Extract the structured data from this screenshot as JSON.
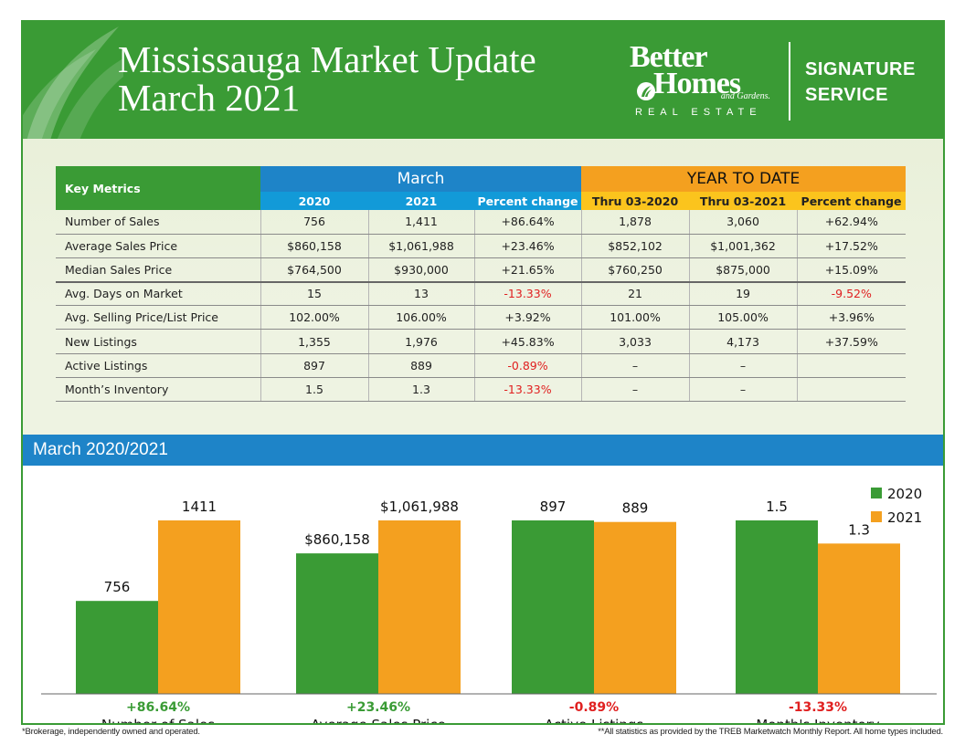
{
  "header": {
    "title_line1": "Mississauga Market Update",
    "title_line2": "March 2021",
    "brand": {
      "line1": "Better",
      "line2": "Homes",
      "line3": "and Gardens.",
      "line4": "REAL ESTATE",
      "signature1": "SIGNATURE",
      "signature2": "SERVICE"
    }
  },
  "colors": {
    "green": "#3a9b35",
    "blue": "#1e84c8",
    "orange": "#f4a01f",
    "negative": "#e02020",
    "background": "#eef3e2"
  },
  "table": {
    "key_header": "Key Metrics",
    "group_march": "March",
    "group_ytd": "YEAR TO DATE",
    "subheaders": [
      "2020",
      "2021",
      "Percent change",
      "Thru 03-2020",
      "Thru 03-2021",
      "Percent change"
    ],
    "rows": [
      {
        "label": "Number of Sales",
        "cells": [
          "756",
          "1,411",
          "+86.64%",
          "1,878",
          "3,060",
          "+62.94%"
        ]
      },
      {
        "label": "Average Sales Price",
        "cells": [
          "$860,158",
          "$1,061,988",
          "+23.46%",
          "$852,102",
          "$1,001,362",
          "+17.52%"
        ]
      },
      {
        "label": "Median Sales Price",
        "cells": [
          "$764,500",
          "$930,000",
          "+21.65%",
          "$760,250",
          "$875,000",
          "+15.09%"
        ]
      },
      {
        "label": "Avg. Days on Market",
        "cells": [
          "15",
          "13",
          "-13.33%",
          "21",
          "19",
          "-9.52%"
        ]
      },
      {
        "label": "Avg. Selling Price/List Price",
        "cells": [
          "102.00%",
          "106.00%",
          "+3.92%",
          "101.00%",
          "105.00%",
          "+3.96%"
        ]
      },
      {
        "label": "New Listings",
        "cells": [
          "1,355",
          "1,976",
          "+45.83%",
          "3,033",
          "4,173",
          "+37.59%"
        ]
      },
      {
        "label": "Active Listings",
        "cells": [
          "897",
          "889",
          "-0.89%",
          "–",
          "–",
          ""
        ]
      },
      {
        "label": "Month’s Inventory",
        "cells": [
          "1.5",
          "1.3",
          "-13.33%",
          "–",
          "–",
          ""
        ]
      }
    ]
  },
  "chart_band_title": "March 2020/2021",
  "chart_data": {
    "type": "bar",
    "series": [
      {
        "name": "2020",
        "color": "#3a9b35"
      },
      {
        "name": "2021",
        "color": "#f4a01f"
      }
    ],
    "groups": [
      {
        "category": "Number of Sales",
        "change": "+86.64%",
        "change_color": "#3a9b35",
        "values": [
          756,
          1411
        ],
        "labels": [
          "756",
          "1411"
        ]
      },
      {
        "category": "Average Sales Price",
        "change": "+23.46%",
        "change_color": "#3a9b35",
        "values": [
          860158,
          1061988
        ],
        "labels": [
          "$860,158",
          "$1,061,988"
        ]
      },
      {
        "category": "Active Listings",
        "change": "-0.89%",
        "change_color": "#e02020",
        "values": [
          897,
          889
        ],
        "labels": [
          "897",
          "889"
        ]
      },
      {
        "category": "Month's Inventory",
        "change": "-13.33%",
        "change_color": "#e02020",
        "values": [
          1.5,
          1.3
        ],
        "labels": [
          "1.5",
          "1.3"
        ]
      }
    ],
    "scaling": "each group scaled independently",
    "legend_position": "top-right",
    "grid": false
  },
  "footer": {
    "left": "*Brokerage, independently owned and operated.",
    "right": "**All statistics as provided by the TREB Marketwatch Monthly Report. All home types included."
  }
}
